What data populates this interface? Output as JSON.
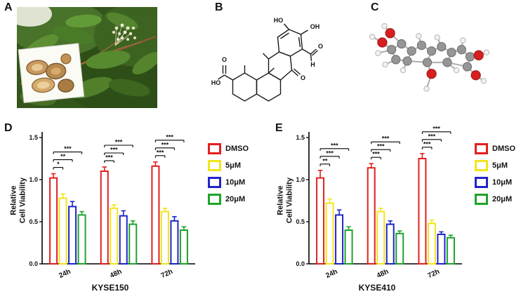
{
  "panel_labels": {
    "A": "A",
    "B": "B",
    "C": "C",
    "D": "D",
    "E": "E"
  },
  "structure": {
    "labels": {
      "top_hydroxyl": "HO",
      "right_hydroxyl": "OH",
      "aldehyde_oxygen": "O",
      "aldehyde_hydrogen": "H",
      "ketone_oxygen": "O",
      "acid_oxygen": "O",
      "acid_hydroxyl": "HO"
    }
  },
  "chart_data": [
    {
      "type": "bar",
      "panel": "D",
      "title": "KYSE150",
      "ylabel": "Relative Cell Viability",
      "ylabel_lines": [
        "Relative",
        "Cell Viability"
      ],
      "ylim": [
        0,
        1.5
      ],
      "yticks": [
        0,
        0.5,
        1,
        1.5
      ],
      "categories": [
        "24h",
        "48h",
        "72h"
      ],
      "series": [
        {
          "name": "DMSO",
          "color": "#e31f1f",
          "values": [
            1.02,
            1.1,
            1.16
          ],
          "errors": [
            0.05,
            0.05,
            0.05
          ]
        },
        {
          "name": "5μM",
          "color": "#f2e41c",
          "values": [
            0.78,
            0.66,
            0.62
          ],
          "errors": [
            0.05,
            0.04,
            0.04
          ]
        },
        {
          "name": "10μM",
          "color": "#2025c8",
          "values": [
            0.68,
            0.57,
            0.51
          ],
          "errors": [
            0.06,
            0.06,
            0.05
          ]
        },
        {
          "name": "20μM",
          "color": "#1fa32b",
          "values": [
            0.58,
            0.47,
            0.4
          ],
          "errors": [
            0.04,
            0.04,
            0.04
          ]
        }
      ],
      "significance": [
        {
          "category": "24h",
          "stars": [
            "*",
            "**",
            "***"
          ]
        },
        {
          "category": "48h",
          "stars": [
            "***",
            "***",
            "***"
          ]
        },
        {
          "category": "72h",
          "stars": [
            "***",
            "***",
            "***"
          ]
        }
      ],
      "legend_position": "right",
      "grid": false
    },
    {
      "type": "bar",
      "panel": "E",
      "title": "KYSE410",
      "ylabel": "Relative Cell Viability",
      "ylabel_lines": [
        "Relative",
        "Cell Viability"
      ],
      "ylim": [
        0,
        1.5
      ],
      "yticks": [
        0,
        0.5,
        1,
        1.5
      ],
      "categories": [
        "24h",
        "48h",
        "72h"
      ],
      "series": [
        {
          "name": "DMSO",
          "color": "#e31f1f",
          "values": [
            1.02,
            1.14,
            1.25
          ],
          "errors": [
            0.09,
            0.05,
            0.06
          ]
        },
        {
          "name": "5μM",
          "color": "#f2e41c",
          "values": [
            0.72,
            0.62,
            0.48
          ],
          "errors": [
            0.05,
            0.04,
            0.04
          ]
        },
        {
          "name": "10μM",
          "color": "#2025c8",
          "values": [
            0.58,
            0.47,
            0.35
          ],
          "errors": [
            0.06,
            0.04,
            0.03
          ]
        },
        {
          "name": "20μM",
          "color": "#1fa32b",
          "values": [
            0.4,
            0.36,
            0.31
          ],
          "errors": [
            0.04,
            0.03,
            0.03
          ]
        }
      ],
      "significance": [
        {
          "category": "24h",
          "stars": [
            "**",
            "***",
            "***"
          ]
        },
        {
          "category": "48h",
          "stars": [
            "***",
            "***",
            "***"
          ]
        },
        {
          "category": "72h",
          "stars": [
            "***",
            "***",
            "***"
          ]
        }
      ],
      "legend_position": "right",
      "grid": false
    }
  ]
}
